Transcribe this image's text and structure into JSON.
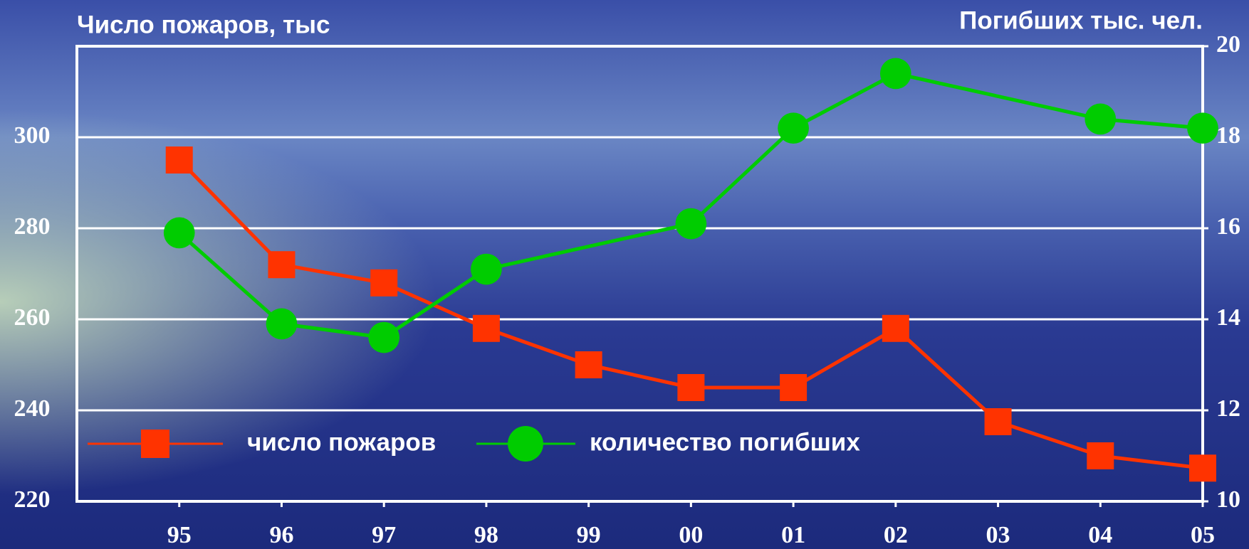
{
  "chart_data": {
    "type": "line",
    "y_label": "Число пожаров, тыс",
    "y2_label": "Погибших тыс. чел.",
    "categories": [
      "95",
      "96",
      "97",
      "98",
      "99",
      "00",
      "01",
      "02",
      "03",
      "04",
      "05"
    ],
    "series": [
      {
        "name": "число пожаров",
        "color": "#ff3300",
        "marker": "square",
        "values": [
          295,
          272,
          268,
          258,
          250,
          245,
          245,
          258,
          237.5,
          230,
          227.3
        ]
      },
      {
        "name": "количество погибших",
        "color": "#00cc00",
        "marker": "circle",
        "axis": "y2",
        "values": [
          15.9,
          13.9,
          13.6,
          15.1,
          null,
          16.1,
          18.2,
          19.4,
          null,
          18.4,
          18.2
        ]
      }
    ],
    "ylim": [
      220,
      320
    ],
    "yticks": [
      220,
      240,
      260,
      280,
      300
    ],
    "y2lim": [
      10,
      20
    ],
    "y2ticks": [
      10,
      12,
      14,
      16,
      18,
      20
    ],
    "grid": true
  }
}
